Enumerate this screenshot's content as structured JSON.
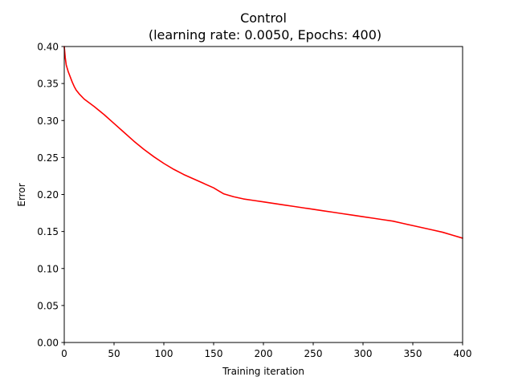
{
  "chart_data": {
    "type": "line",
    "title": "Control",
    "subtitle": "(learning rate: 0.0050, Epochs: 400)",
    "xlabel": "Training iteration",
    "ylabel": "Error",
    "xlim": [
      0,
      400
    ],
    "ylim": [
      0,
      0.4
    ],
    "xticks": [
      0,
      50,
      100,
      150,
      200,
      250,
      300,
      350,
      400
    ],
    "xtick_labels": [
      "0",
      "50",
      "100",
      "150",
      "200",
      "250",
      "300",
      "350",
      "400"
    ],
    "yticks": [
      0,
      0.05,
      0.1,
      0.15,
      0.2,
      0.25,
      0.3,
      0.35,
      0.4
    ],
    "ytick_labels": [
      "0.00",
      "0.05",
      "0.10",
      "0.15",
      "0.20",
      "0.25",
      "0.30",
      "0.35",
      "0.40"
    ],
    "grid": false,
    "legend": "none",
    "series": [
      {
        "color": "#ff0000",
        "x": [
          0,
          1,
          2,
          4,
          6,
          8,
          10,
          12,
          15,
          20,
          25,
          30,
          40,
          50,
          60,
          70,
          80,
          90,
          100,
          110,
          120,
          130,
          140,
          150,
          155,
          160,
          170,
          180,
          190,
          200,
          210,
          220,
          230,
          240,
          250,
          260,
          270,
          280,
          290,
          300,
          310,
          320,
          330,
          340,
          350,
          360,
          370,
          380,
          390,
          400
        ],
        "y": [
          0.4,
          0.385,
          0.375,
          0.366,
          0.359,
          0.352,
          0.346,
          0.341,
          0.336,
          0.329,
          0.324,
          0.319,
          0.308,
          0.296,
          0.284,
          0.272,
          0.261,
          0.251,
          0.242,
          0.234,
          0.227,
          0.221,
          0.215,
          0.209,
          0.205,
          0.201,
          0.197,
          0.194,
          0.192,
          0.19,
          0.188,
          0.186,
          0.184,
          0.182,
          0.18,
          0.178,
          0.176,
          0.174,
          0.172,
          0.17,
          0.168,
          0.166,
          0.164,
          0.161,
          0.158,
          0.155,
          0.152,
          0.149,
          0.145,
          0.141
        ]
      }
    ]
  }
}
